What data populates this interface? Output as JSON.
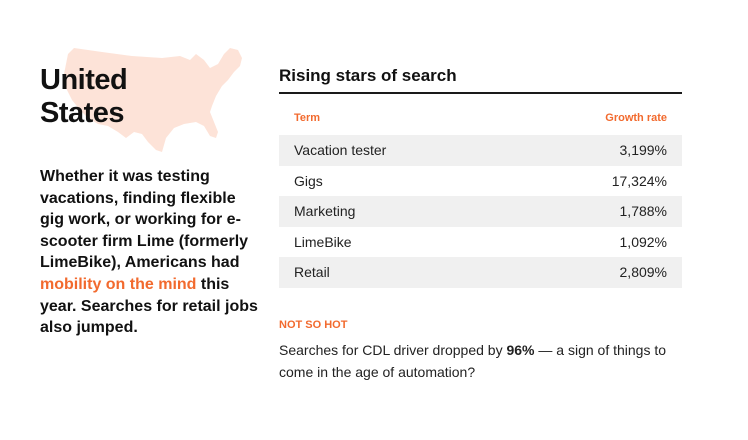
{
  "region": {
    "title": "United States",
    "map_color": "#fde3d8"
  },
  "blurb": {
    "before": "Whether it was testing vacations, finding flexible gig work, or working for e-scooter firm Lime (formerly LimeBike), Americans had ",
    "highlight": "mobility on the mind",
    "after": " this year. Searches for retail jobs also jumped."
  },
  "table": {
    "title": "Rising stars of search",
    "col_term": "Term",
    "col_rate": "Growth rate",
    "rows": [
      {
        "term": "Vacation tester",
        "rate": "3,199%"
      },
      {
        "term": "Gigs",
        "rate": "17,324%"
      },
      {
        "term": "Marketing",
        "rate": "1,788%"
      },
      {
        "term": "LimeBike",
        "rate": "1,092%"
      },
      {
        "term": "Retail",
        "rate": "2,809%"
      }
    ]
  },
  "not_so_hot": {
    "label": "NOT SO HOT",
    "before": "Searches for CDL driver dropped by ",
    "bold": "96%",
    "after": " — a sign of things to come in the age of automation?"
  },
  "colors": {
    "accent": "#f26a2e",
    "row_shade": "#f0f0f0"
  }
}
